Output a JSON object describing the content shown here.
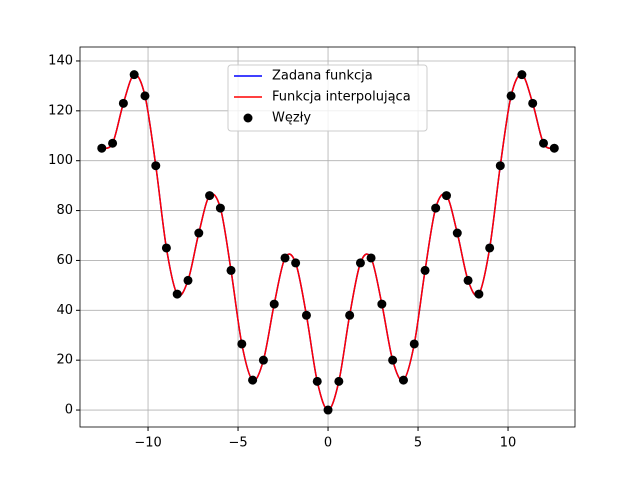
{
  "chart_data": {
    "type": "line",
    "x": [
      -12.57,
      -11.97,
      -11.37,
      -10.77,
      -10.17,
      -9.57,
      -8.98,
      -8.38,
      -7.78,
      -7.18,
      -6.58,
      -5.98,
      -5.39,
      -4.79,
      -4.19,
      -3.59,
      -2.99,
      -2.39,
      -1.8,
      -1.2,
      -0.6,
      0,
      0.6,
      1.2,
      1.8,
      2.39,
      2.99,
      3.59,
      4.19,
      4.79,
      5.39,
      5.98,
      6.58,
      7.18,
      7.78,
      8.38,
      8.98,
      9.57,
      10.17,
      10.77,
      11.37,
      11.97,
      12.57
    ],
    "series": [
      {
        "name": "Zadana funkcja",
        "color": "#0000ff",
        "style": "line",
        "values": [
          105,
          107,
          123,
          134.5,
          126,
          98,
          65,
          46.5,
          52,
          71,
          86,
          81,
          56,
          26.5,
          12,
          20,
          42.5,
          61,
          59,
          38,
          11.5,
          0,
          11.5,
          38,
          59,
          61,
          42.5,
          20,
          12,
          26.5,
          56,
          81,
          86,
          71,
          52,
          46.5,
          65,
          98,
          126,
          134.5,
          123,
          107,
          105
        ]
      },
      {
        "name": "Funkcja interpolująca",
        "color": "#ff0000",
        "style": "line",
        "values": [
          105,
          107,
          123,
          134.5,
          126,
          98,
          65,
          46.5,
          52,
          71,
          86,
          81,
          56,
          26.5,
          12,
          20,
          42.5,
          61,
          59,
          38,
          11.5,
          0,
          11.5,
          38,
          59,
          61,
          42.5,
          20,
          12,
          26.5,
          56,
          81,
          86,
          71,
          52,
          46.5,
          65,
          98,
          126,
          134.5,
          123,
          107,
          105
        ]
      },
      {
        "name": "Węzły",
        "color": "#000000",
        "style": "scatter",
        "values": [
          105,
          107,
          123,
          134.5,
          126,
          98,
          65,
          46.5,
          52,
          71,
          86,
          81,
          56,
          26.5,
          12,
          20,
          42.5,
          61,
          59,
          38,
          11.5,
          0,
          11.5,
          38,
          59,
          61,
          42.5,
          20,
          12,
          26.5,
          56,
          81,
          86,
          71,
          52,
          46.5,
          65,
          98,
          126,
          134.5,
          123,
          107,
          105
        ]
      }
    ],
    "xlim": [
      -13.78,
      13.72
    ],
    "xticks": [
      {
        "value": -10,
        "label": "−10"
      },
      {
        "value": -5,
        "label": "−5"
      },
      0,
      5,
      10
    ],
    "ylim": [
      -6.8,
      145.6
    ],
    "yticks": [
      0,
      20,
      40,
      60,
      80,
      100,
      120,
      140
    ],
    "grid": true,
    "legend": "upper center"
  }
}
